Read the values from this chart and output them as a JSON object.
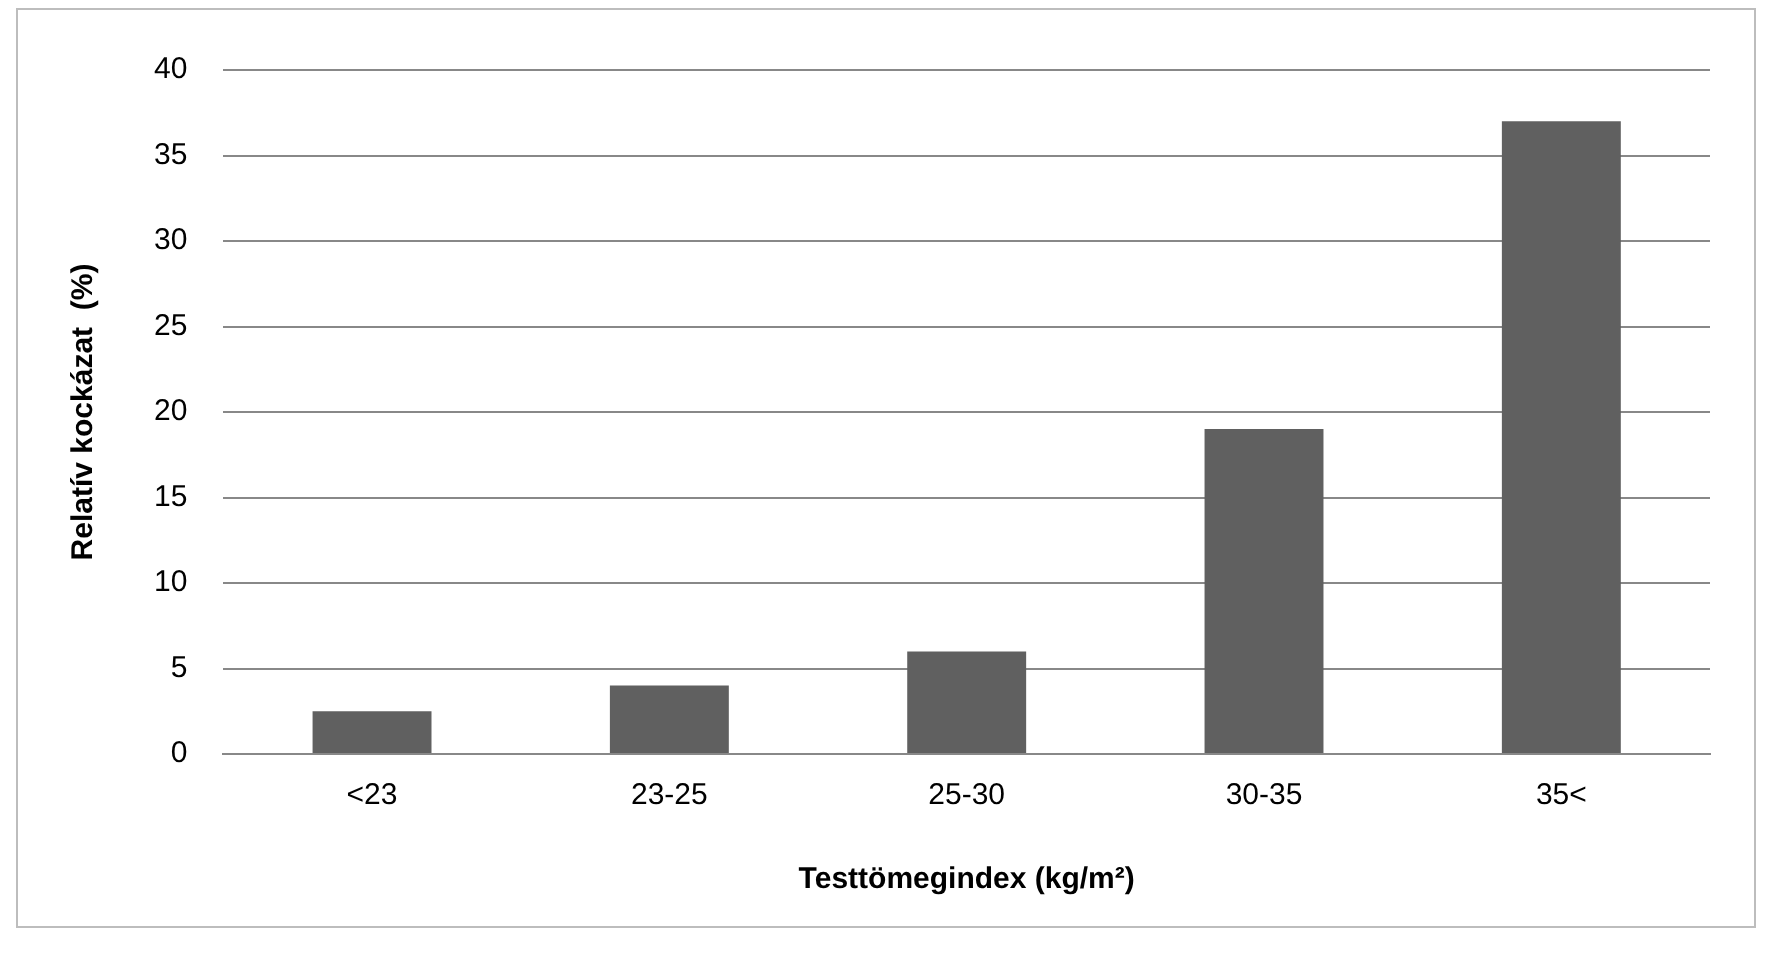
{
  "chart_data": {
    "type": "bar",
    "xlabel": "Testtömegindex (kg/m²)",
    "ylabel": "Relatív kockázat  (%)",
    "categories": [
      "<23",
      "23-25",
      "25-30",
      "30-35",
      "35<"
    ],
    "values": [
      2.5,
      4,
      6,
      19,
      37
    ],
    "color": "#606060",
    "ylim": [
      0,
      40
    ],
    "yticks": [
      0,
      5,
      10,
      15,
      20,
      25,
      30,
      35,
      40
    ],
    "grid": "y",
    "legend": false
  }
}
